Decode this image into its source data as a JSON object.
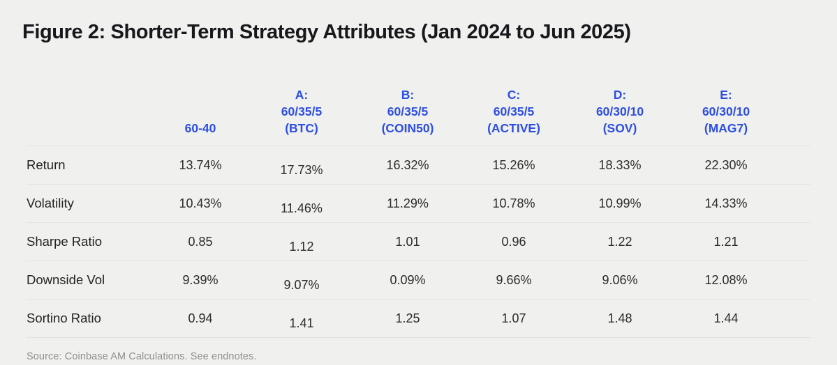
{
  "page": {
    "background_color": "#f0f0ee",
    "accent_color": "#2d4ee0"
  },
  "title": "Figure 2: Shorter-Term Strategy Attributes (Jan 2024 to Jun 2025)",
  "table": {
    "columns": [
      {
        "lines": [
          "60-40"
        ]
      },
      {
        "lines": [
          "A:",
          "60/35/5",
          "(BTC)"
        ]
      },
      {
        "lines": [
          "B:",
          "60/35/5",
          "(COIN50)"
        ]
      },
      {
        "lines": [
          "C:",
          "60/35/5",
          "(ACTIVE)"
        ]
      },
      {
        "lines": [
          "D:",
          "60/30/10",
          "(SOV)"
        ]
      },
      {
        "lines": [
          "E:",
          "60/30/10",
          "(MAG7)"
        ]
      }
    ],
    "rows": [
      {
        "label": "Return",
        "values": [
          "13.74%",
          "17.73%",
          "16.32%",
          "15.26%",
          "18.33%",
          "22.30%"
        ]
      },
      {
        "label": "Volatility",
        "values": [
          "10.43%",
          "11.46%",
          "11.29%",
          "10.78%",
          "10.99%",
          "14.33%"
        ]
      },
      {
        "label": "Sharpe Ratio",
        "values": [
          "0.85",
          "1.12",
          "1.01",
          "0.96",
          "1.22",
          "1.21"
        ]
      },
      {
        "label": "Downside Vol",
        "values": [
          "9.39%",
          "9.07%",
          "0.09%",
          "9.66%",
          "9.06%",
          "12.08%"
        ]
      },
      {
        "label": "Sortino Ratio",
        "values": [
          "0.94",
          "1.41",
          "1.25",
          "1.07",
          "1.48",
          "1.44"
        ]
      }
    ]
  },
  "footer": {
    "source": "Source: Coinbase AM Calculations. See endnotes."
  }
}
